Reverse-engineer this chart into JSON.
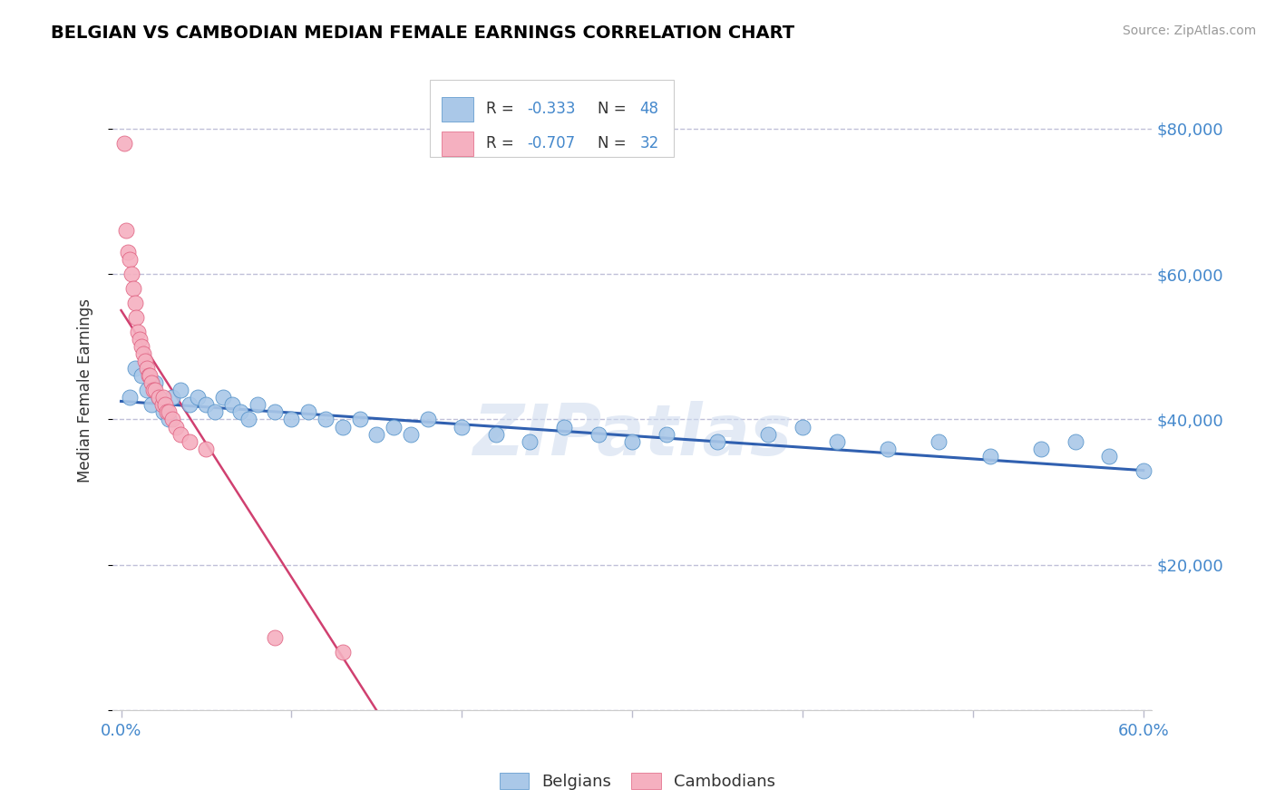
{
  "title": "BELGIAN VS CAMBODIAN MEDIAN FEMALE EARNINGS CORRELATION CHART",
  "source": "Source: ZipAtlas.com",
  "ylabel": "Median Female Earnings",
  "watermark": "ZIPatlas",
  "xlim": [
    -0.005,
    0.605
  ],
  "ylim": [
    0,
    88000
  ],
  "ytick_vals": [
    0,
    20000,
    40000,
    60000,
    80000
  ],
  "ytick_labels": [
    "",
    "$20,000",
    "$40,000",
    "$60,000",
    "$80,000"
  ],
  "xtick_vals": [
    0.0,
    0.1,
    0.2,
    0.3,
    0.4,
    0.5,
    0.6
  ],
  "xtick_labels": [
    "0.0%",
    "",
    "",
    "",
    "",
    "",
    "60.0%"
  ],
  "belgian_R": -0.333,
  "belgian_N": 48,
  "cambodian_R": -0.707,
  "cambodian_N": 32,
  "belgian_color": "#aac8e8",
  "belgian_edge_color": "#5090c8",
  "belgian_line_color": "#3060b0",
  "cambodian_color": "#f5b0c0",
  "cambodian_edge_color": "#e06080",
  "cambodian_line_color": "#d04070",
  "background_color": "#ffffff",
  "grid_color": "#c0c0d8",
  "title_color": "#000000",
  "axis_label_color": "#333333",
  "tick_color": "#4488cc",
  "source_color": "#999999",
  "legend_text_color": "#333333",
  "belgian_x": [
    0.005,
    0.008,
    0.012,
    0.015,
    0.018,
    0.02,
    0.022,
    0.025,
    0.028,
    0.03,
    0.035,
    0.04,
    0.045,
    0.05,
    0.055,
    0.06,
    0.065,
    0.07,
    0.075,
    0.08,
    0.09,
    0.1,
    0.11,
    0.12,
    0.13,
    0.14,
    0.15,
    0.16,
    0.17,
    0.18,
    0.2,
    0.22,
    0.24,
    0.26,
    0.28,
    0.3,
    0.32,
    0.35,
    0.38,
    0.4,
    0.42,
    0.45,
    0.48,
    0.51,
    0.54,
    0.56,
    0.58,
    0.6
  ],
  "belgian_y": [
    43000,
    47000,
    46000,
    44000,
    42000,
    45000,
    43000,
    41000,
    40000,
    43000,
    44000,
    42000,
    43000,
    42000,
    41000,
    43000,
    42000,
    41000,
    40000,
    42000,
    41000,
    40000,
    41000,
    40000,
    39000,
    40000,
    38000,
    39000,
    38000,
    40000,
    39000,
    38000,
    37000,
    39000,
    38000,
    37000,
    38000,
    37000,
    38000,
    39000,
    37000,
    36000,
    37000,
    35000,
    36000,
    37000,
    35000,
    33000
  ],
  "cambodian_x": [
    0.002,
    0.003,
    0.004,
    0.005,
    0.006,
    0.007,
    0.008,
    0.009,
    0.01,
    0.011,
    0.012,
    0.013,
    0.014,
    0.015,
    0.016,
    0.017,
    0.018,
    0.019,
    0.02,
    0.022,
    0.024,
    0.025,
    0.026,
    0.027,
    0.028,
    0.03,
    0.032,
    0.035,
    0.04,
    0.05,
    0.09,
    0.13
  ],
  "cambodian_y": [
    78000,
    66000,
    63000,
    62000,
    60000,
    58000,
    56000,
    54000,
    52000,
    51000,
    50000,
    49000,
    48000,
    47000,
    46000,
    46000,
    45000,
    44000,
    44000,
    43000,
    42000,
    43000,
    42000,
    41000,
    41000,
    40000,
    39000,
    38000,
    37000,
    36000,
    10000,
    8000
  ],
  "blue_line_x0": 0.0,
  "blue_line_y0": 42500,
  "blue_line_x1": 0.6,
  "blue_line_y1": 33000,
  "pink_line_x0": 0.0,
  "pink_line_y0": 55000,
  "pink_line_x1": 0.15,
  "pink_line_y1": 0
}
